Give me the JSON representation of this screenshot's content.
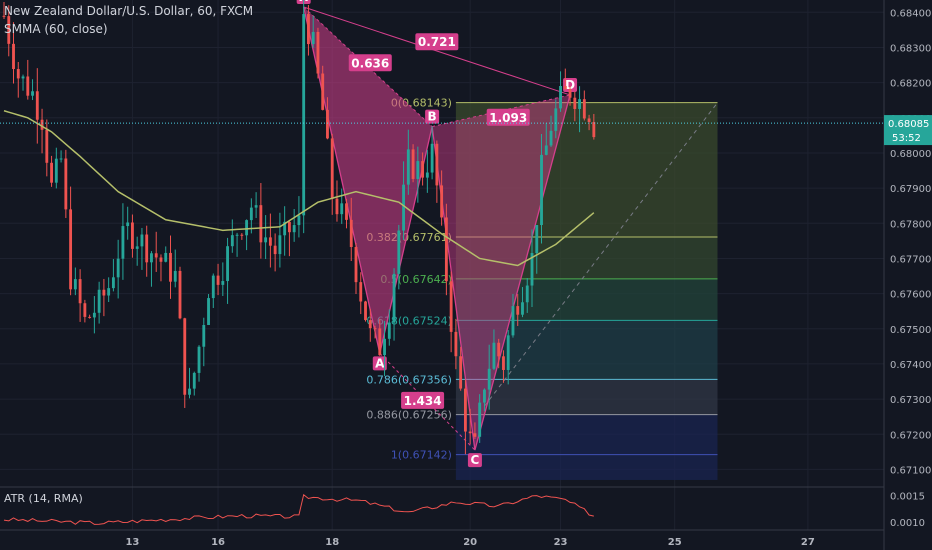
{
  "header": {
    "title": "New Zealand Dollar/U.S. Dollar, 60, FXCM",
    "smma_label": "SMMA (60, close)",
    "atr_label": "ATR (14, RMA)"
  },
  "price_tag": {
    "value": "0.68085",
    "countdown": "53:52"
  },
  "colors": {
    "background": "#131722",
    "bull": "#26a69a",
    "bear": "#ef5350",
    "smma": "#b5bf6a",
    "pattern": "#d53f8c",
    "atr": "#ef5350",
    "price_line": "#4dd0e1"
  },
  "chart_data": {
    "type": "candlestick",
    "y_axis": {
      "ticks": [
        0.671,
        0.672,
        0.673,
        0.674,
        0.675,
        0.676,
        0.677,
        0.678,
        0.679,
        0.68,
        0.681,
        0.682,
        0.683,
        0.684
      ],
      "tick_labels": [
        "0.67100",
        "0.67200",
        "0.67300",
        "0.67400",
        "0.67500",
        "0.67600",
        "0.67700",
        "0.67800",
        "0.67900",
        "0.68000",
        "0.68100",
        "0.68200",
        "0.68300",
        "0.68400"
      ],
      "range": [
        0.6705,
        0.68435
      ]
    },
    "x_axis": {
      "labels": [
        {
          "text": "13",
          "bar": 27
        },
        {
          "text": "16",
          "bar": 45
        },
        {
          "text": "18",
          "bar": 69
        },
        {
          "text": "20",
          "bar": 98
        },
        {
          "text": "23",
          "bar": 117
        },
        {
          "text": "25",
          "bar": 141
        },
        {
          "text": "27",
          "bar": 169
        }
      ],
      "total_bars": 185,
      "last_bar": 124
    },
    "candles_keypoints": [
      {
        "bar": 0,
        "price": 0.6839
      },
      {
        "bar": 3,
        "price": 0.6822
      },
      {
        "bar": 6,
        "price": 0.6817
      },
      {
        "bar": 8,
        "price": 0.681
      },
      {
        "bar": 10,
        "price": 0.679
      },
      {
        "bar": 12,
        "price": 0.6798
      },
      {
        "bar": 14,
        "price": 0.6765
      },
      {
        "bar": 17,
        "price": 0.6752
      },
      {
        "bar": 20,
        "price": 0.6757
      },
      {
        "bar": 22,
        "price": 0.6762
      },
      {
        "bar": 24,
        "price": 0.6772
      },
      {
        "bar": 26,
        "price": 0.6778
      },
      {
        "bar": 28,
        "price": 0.6776
      },
      {
        "bar": 31,
        "price": 0.6772
      },
      {
        "bar": 34,
        "price": 0.6768
      },
      {
        "bar": 36,
        "price": 0.6765
      },
      {
        "bar": 38,
        "price": 0.6735
      },
      {
        "bar": 39,
        "price": 0.673
      },
      {
        "bar": 41,
        "price": 0.6745
      },
      {
        "bar": 43,
        "price": 0.6762
      },
      {
        "bar": 46,
        "price": 0.6768
      },
      {
        "bar": 49,
        "price": 0.6778
      },
      {
        "bar": 52,
        "price": 0.6785
      },
      {
        "bar": 54,
        "price": 0.6778
      },
      {
        "bar": 57,
        "price": 0.6772
      },
      {
        "bar": 60,
        "price": 0.6778
      },
      {
        "bar": 62,
        "price": 0.678
      },
      {
        "bar": 63,
        "price": 0.684
      },
      {
        "bar": 65,
        "price": 0.683
      },
      {
        "bar": 67,
        "price": 0.6812
      },
      {
        "bar": 69,
        "price": 0.6788
      },
      {
        "bar": 71,
        "price": 0.6782
      },
      {
        "bar": 73,
        "price": 0.6774
      },
      {
        "bar": 75,
        "price": 0.676
      },
      {
        "bar": 77,
        "price": 0.6748
      },
      {
        "bar": 79,
        "price": 0.6745
      },
      {
        "bar": 81,
        "price": 0.6756
      },
      {
        "bar": 83,
        "price": 0.6778
      },
      {
        "bar": 85,
        "price": 0.6797
      },
      {
        "bar": 88,
        "price": 0.6795
      },
      {
        "bar": 90,
        "price": 0.68
      },
      {
        "bar": 91,
        "price": 0.679
      },
      {
        "bar": 93,
        "price": 0.6765
      },
      {
        "bar": 95,
        "price": 0.674
      },
      {
        "bar": 97,
        "price": 0.6724
      },
      {
        "bar": 98,
        "price": 0.6718
      },
      {
        "bar": 99,
        "price": 0.6716
      },
      {
        "bar": 101,
        "price": 0.6735
      },
      {
        "bar": 103,
        "price": 0.6745
      },
      {
        "bar": 105,
        "price": 0.674
      },
      {
        "bar": 107,
        "price": 0.6755
      },
      {
        "bar": 109,
        "price": 0.6762
      },
      {
        "bar": 111,
        "price": 0.677
      },
      {
        "bar": 113,
        "price": 0.6795
      },
      {
        "bar": 115,
        "price": 0.6808
      },
      {
        "bar": 117,
        "price": 0.6815
      },
      {
        "bar": 119,
        "price": 0.6818
      },
      {
        "bar": 121,
        "price": 0.6815
      },
      {
        "bar": 123,
        "price": 0.6812
      },
      {
        "bar": 124,
        "price": 0.6808
      }
    ],
    "smma_keypoints": [
      {
        "bar": 0,
        "price": 0.6812
      },
      {
        "bar": 5,
        "price": 0.681
      },
      {
        "bar": 10,
        "price": 0.6806
      },
      {
        "bar": 16,
        "price": 0.6799
      },
      {
        "bar": 24,
        "price": 0.6789
      },
      {
        "bar": 34,
        "price": 0.6781
      },
      {
        "bar": 46,
        "price": 0.6778
      },
      {
        "bar": 58,
        "price": 0.6779
      },
      {
        "bar": 66,
        "price": 0.6786
      },
      {
        "bar": 74,
        "price": 0.6789
      },
      {
        "bar": 83,
        "price": 0.6786
      },
      {
        "bar": 92,
        "price": 0.6777
      },
      {
        "bar": 100,
        "price": 0.677
      },
      {
        "bar": 108,
        "price": 0.6768
      },
      {
        "bar": 116,
        "price": 0.6774
      },
      {
        "bar": 124,
        "price": 0.6783
      }
    ],
    "xabcd_pattern": {
      "points": [
        {
          "name": "X",
          "bar": 63,
          "price": 0.68415
        },
        {
          "name": "A",
          "bar": 79,
          "price": 0.6743
        },
        {
          "name": "B",
          "bar": 90,
          "price": 0.68075
        },
        {
          "name": "C",
          "bar": 99,
          "price": 0.67155
        },
        {
          "name": "D",
          "bar": 119,
          "price": 0.68165
        }
      ],
      "ratios": [
        {
          "text": "0.636",
          "bar": 77,
          "price": 0.68255
        },
        {
          "text": "0.721",
          "bar": 91,
          "price": 0.68315
        },
        {
          "text": "1.093",
          "bar": 106,
          "price": 0.681
        },
        {
          "text": "1.434",
          "bar": 88,
          "price": 0.67295
        }
      ]
    },
    "fib_retracement": {
      "start_bar": 95,
      "end_bar": 150,
      "levels": [
        {
          "label": "0(0.68143)",
          "price": 0.68143,
          "color": "#b5bf6a"
        },
        {
          "label": "0.382(0.67761)",
          "price": 0.67761,
          "color": "#b5bf6a"
        },
        {
          "label": "0.5(0.67642)",
          "price": 0.67642,
          "color": "#4caf50"
        },
        {
          "label": "0.618(0.67524)",
          "price": 0.67524,
          "color": "#26a69a"
        },
        {
          "label": "0.786(0.67356)",
          "price": 0.67356,
          "color": "#5bbcd6"
        },
        {
          "label": "0.886(0.67256)",
          "price": 0.67256,
          "color": "#9598a1"
        },
        {
          "label": "1(0.67142)",
          "price": 0.67142,
          "color": "#3f51b5"
        }
      ],
      "bottom_price": 0.6707
    },
    "atr": {
      "ticks": [
        0.001,
        0.0015
      ],
      "tick_labels": [
        "0.0010",
        "0.0015"
      ],
      "range": [
        0.00085,
        0.00155
      ],
      "keypoints": [
        {
          "bar": 0,
          "value": 0.00105
        },
        {
          "bar": 20,
          "value": 0.00098
        },
        {
          "bar": 40,
          "value": 0.00108
        },
        {
          "bar": 50,
          "value": 0.00112
        },
        {
          "bar": 62,
          "value": 0.0011
        },
        {
          "bar": 63,
          "value": 0.00148
        },
        {
          "bar": 75,
          "value": 0.0014
        },
        {
          "bar": 85,
          "value": 0.00118
        },
        {
          "bar": 95,
          "value": 0.00138
        },
        {
          "bar": 104,
          "value": 0.0013
        },
        {
          "bar": 112,
          "value": 0.0015
        },
        {
          "bar": 118,
          "value": 0.00142
        },
        {
          "bar": 124,
          "value": 0.00112
        }
      ]
    }
  }
}
